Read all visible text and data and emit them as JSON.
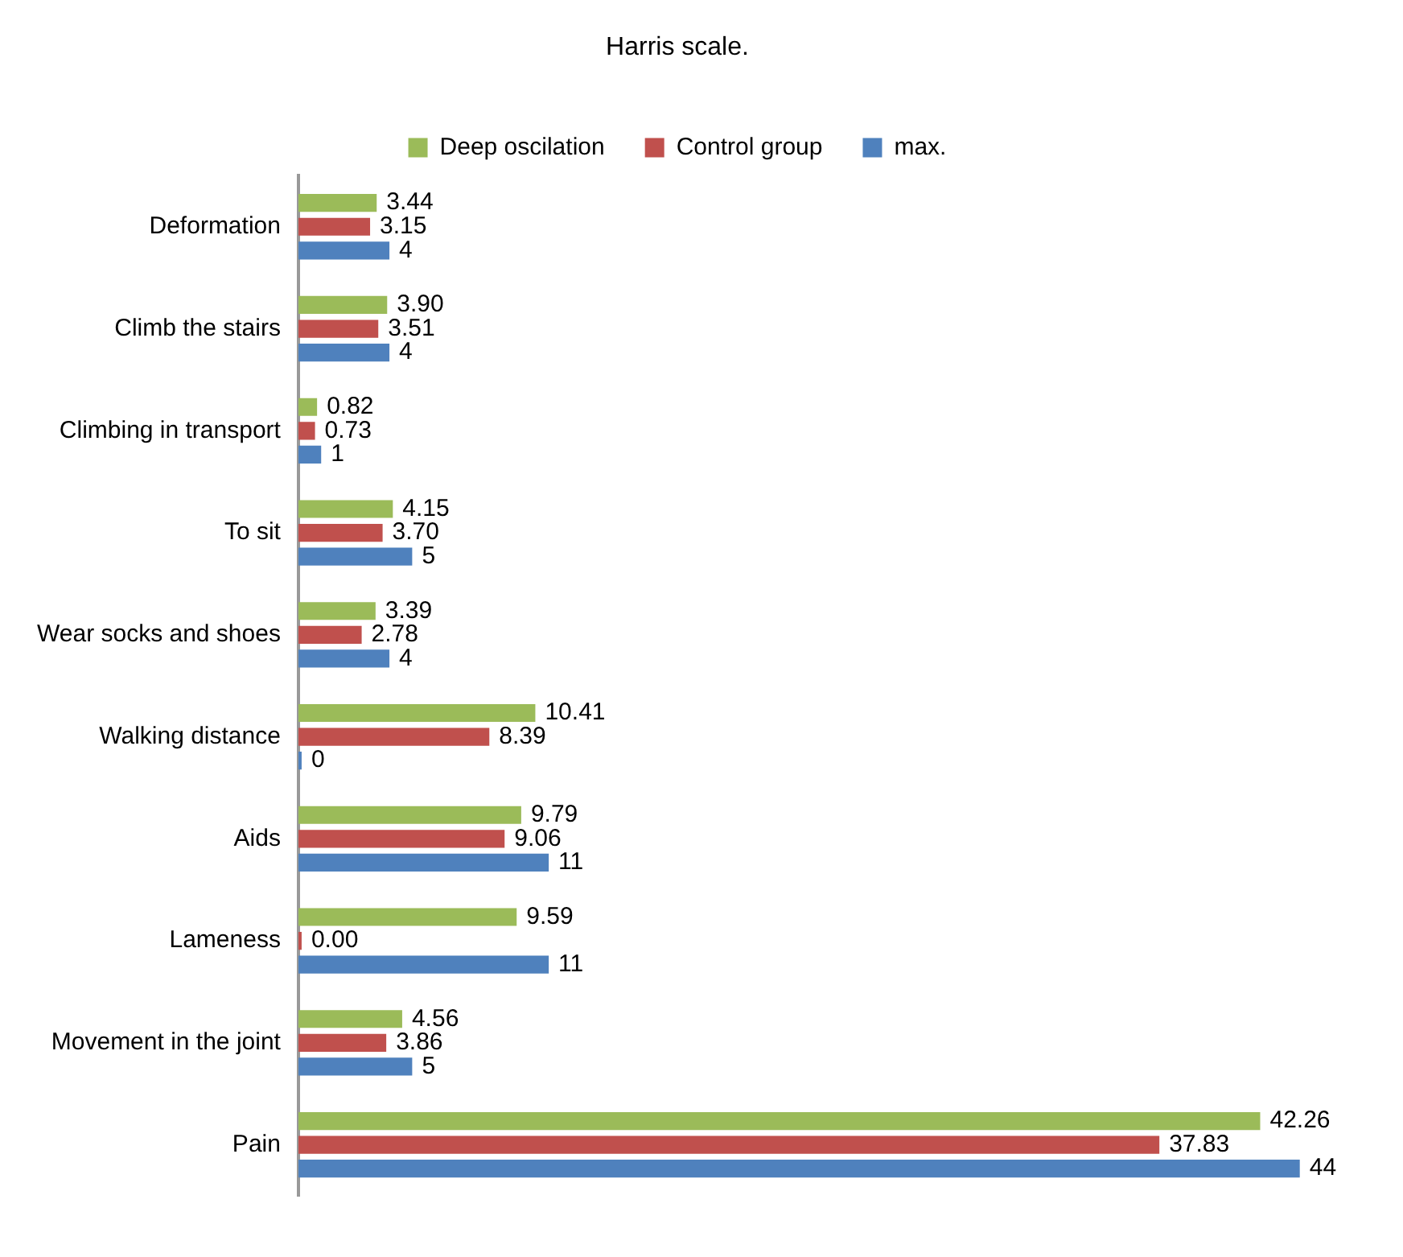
{
  "chart_data": {
    "type": "bar",
    "orientation": "horizontal",
    "title": "Harris scale.",
    "legend": "top",
    "categories": [
      "Deformation",
      "Climb the stairs",
      "Climbing in transport",
      "To sit",
      "Wear socks and shoes",
      "Walking distance",
      "Aids",
      "Lameness",
      "Movement in the joint",
      "Pain"
    ],
    "series": [
      {
        "name": "Deep oscilation",
        "color": "#9bbb59",
        "values": [
          3.44,
          3.9,
          0.82,
          4.15,
          3.39,
          10.41,
          9.79,
          9.59,
          4.56,
          42.26
        ],
        "value_labels": [
          "3.44",
          "3.90",
          "0.82",
          "4.15",
          "3.39",
          "10.41",
          "9.79",
          "9.59",
          "4.56",
          "42.26"
        ]
      },
      {
        "name": "Control group",
        "color": "#c0504d",
        "values": [
          3.15,
          3.51,
          0.73,
          3.7,
          2.78,
          8.39,
          9.06,
          0.0,
          3.86,
          37.83
        ],
        "value_labels": [
          "3.15",
          "3.51",
          "0.73",
          "3.70",
          "2.78",
          "8.39",
          "9.06",
          "0.00",
          "3.86",
          "37.83"
        ]
      },
      {
        "name": "max.",
        "color": "#4f81bd",
        "values": [
          4,
          4,
          1,
          5,
          4,
          0,
          11,
          11,
          5,
          44
        ],
        "value_labels": [
          "4",
          "4",
          "1",
          "5",
          "4",
          "0",
          "11",
          "11",
          "5",
          "44"
        ]
      }
    ]
  }
}
